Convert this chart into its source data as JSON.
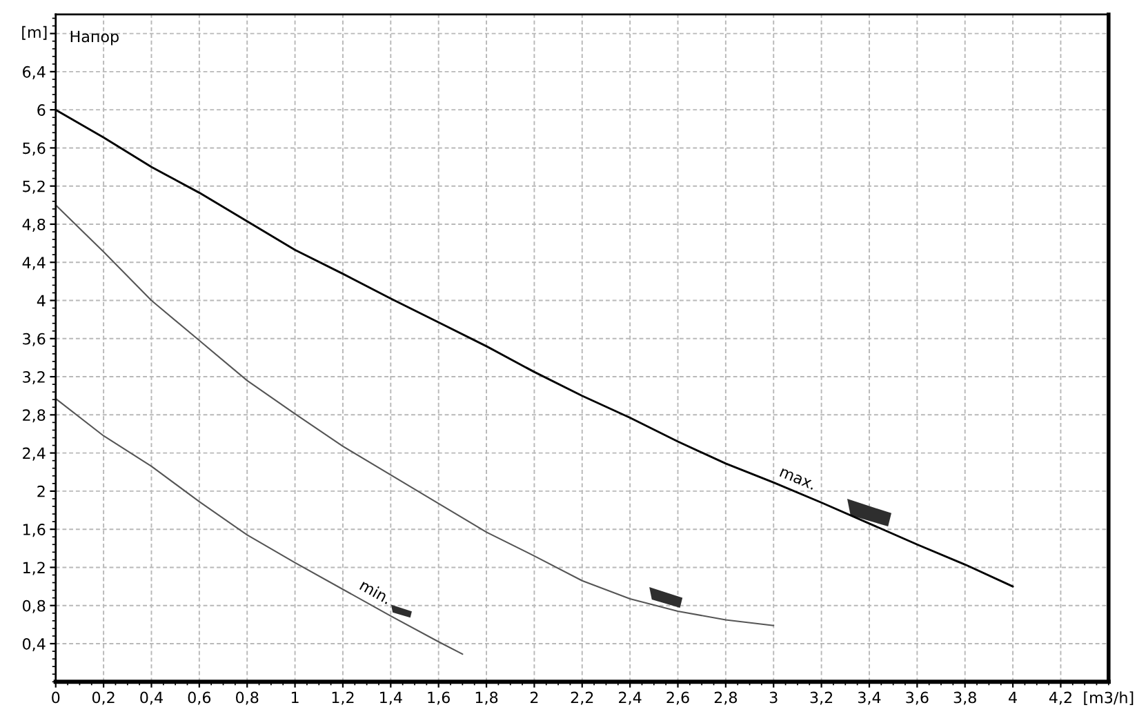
{
  "chart_data": {
    "type": "line",
    "title": "Напор",
    "xlabel": "[m3/h]",
    "ylabel": "[m]",
    "xlim": [
      0,
      4.4
    ],
    "ylim": [
      0,
      7
    ],
    "xticks": [
      0,
      {
        "value": 0.2,
        "label": "0,2"
      },
      {
        "value": 0.4,
        "label": "0,4"
      },
      {
        "value": 0.6,
        "label": "0,6"
      },
      {
        "value": 0.8,
        "label": "0,8"
      },
      1,
      {
        "value": 1.2,
        "label": "1,2"
      },
      {
        "value": 1.4,
        "label": "1,4"
      },
      {
        "value": 1.6,
        "label": "1,6"
      },
      {
        "value": 1.8,
        "label": "1,8"
      },
      2,
      {
        "value": 2.2,
        "label": "2,2"
      },
      {
        "value": 2.4,
        "label": "2,4"
      },
      {
        "value": 2.6,
        "label": "2,6"
      },
      {
        "value": 2.8,
        "label": "2,8"
      },
      3,
      {
        "value": 3.2,
        "label": "3,2"
      },
      {
        "value": 3.4,
        "label": "3,4"
      },
      {
        "value": 3.6,
        "label": "3,6"
      },
      {
        "value": 3.8,
        "label": "3,8"
      },
      4,
      {
        "value": 4.2,
        "label": "4,2"
      }
    ],
    "yticks": [
      {
        "value": 0.4,
        "label": "0,4"
      },
      {
        "value": 0.8,
        "label": "0,8"
      },
      {
        "value": 1.2,
        "label": "1,2"
      },
      {
        "value": 1.6,
        "label": "1,6"
      },
      2,
      {
        "value": 2.4,
        "label": "2,4"
      },
      {
        "value": 2.8,
        "label": "2,8"
      },
      {
        "value": 3.2,
        "label": "3,2"
      },
      {
        "value": 3.6,
        "label": "3,6"
      },
      4,
      {
        "value": 4.4,
        "label": "4,4"
      },
      {
        "value": 4.8,
        "label": "4,8"
      },
      {
        "value": 5.2,
        "label": "5,2"
      },
      {
        "value": 5.6,
        "label": "5,6"
      },
      6,
      {
        "value": 6.4,
        "label": "6,4"
      },
      {
        "value": 6.8,
        "label": null
      }
    ],
    "grid": true,
    "line_style": "solid",
    "series": [
      {
        "name": "max.",
        "color": "#000000",
        "x": [
          0,
          0.2,
          0.4,
          0.6,
          0.8,
          1.0,
          1.2,
          1.4,
          1.6,
          1.8,
          2.0,
          2.2,
          2.4,
          2.6,
          2.8,
          3.0,
          3.2,
          3.4,
          3.6,
          3.8,
          4.0
        ],
        "values": [
          6.0,
          5.71,
          5.4,
          5.13,
          4.83,
          4.53,
          4.28,
          4.02,
          3.77,
          3.52,
          3.25,
          3.0,
          2.77,
          2.52,
          2.29,
          2.09,
          1.88,
          1.66,
          1.44,
          1.23,
          1.0
        ]
      },
      {
        "color": "#555555",
        "x": [
          0,
          0.2,
          0.4,
          0.6,
          0.8,
          1.0,
          1.2,
          1.4,
          1.6,
          1.8,
          2.0,
          2.2,
          2.4,
          2.6,
          2.8,
          3.0
        ],
        "values": [
          5.0,
          4.51,
          4.0,
          3.58,
          3.16,
          2.81,
          2.47,
          2.17,
          1.87,
          1.57,
          1.32,
          1.06,
          0.87,
          0.74,
          0.65,
          0.59
        ]
      },
      {
        "name": "min.",
        "color": "#555555",
        "x": [
          0,
          0.2,
          0.4,
          0.6,
          0.8,
          1.0,
          1.2,
          1.4,
          1.6,
          1.7
        ],
        "values": [
          2.97,
          2.58,
          2.26,
          1.89,
          1.54,
          1.25,
          0.97,
          0.69,
          0.42,
          0.29
        ]
      }
    ]
  }
}
